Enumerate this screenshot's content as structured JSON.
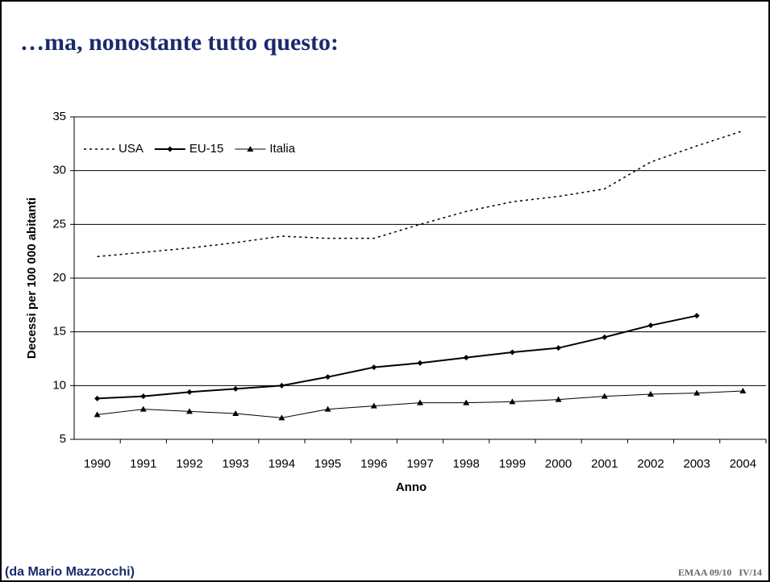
{
  "chart_data": {
    "type": "line",
    "title": "…ma, nonostante tutto questo:",
    "xlabel": "Anno",
    "ylabel": "Decessi per 100 000 abitanti",
    "categories": [
      "1990",
      "1991",
      "1992",
      "1993",
      "1994",
      "1995",
      "1996",
      "1997",
      "1998",
      "1999",
      "2000",
      "2001",
      "2002",
      "2003",
      "2004"
    ],
    "series": [
      {
        "name": "USA",
        "color": "#000000",
        "dash": true,
        "marker": "none",
        "values": [
          22.0,
          22.4,
          22.8,
          23.3,
          23.9,
          23.7,
          23.7,
          25.0,
          26.2,
          27.1,
          27.6,
          28.3,
          30.8,
          32.3,
          33.7
        ]
      },
      {
        "name": "EU-15",
        "color": "#000000",
        "dash": false,
        "marker": "diamond",
        "values": [
          8.8,
          9.0,
          9.4,
          9.7,
          10.0,
          10.8,
          11.7,
          12.1,
          12.6,
          13.1,
          13.5,
          14.5,
          15.6,
          16.5,
          null
        ]
      },
      {
        "name": "Italia",
        "color": "#000000",
        "dash": false,
        "marker": "triangle",
        "values": [
          7.3,
          7.8,
          7.6,
          7.4,
          7.0,
          7.8,
          8.1,
          8.4,
          8.4,
          8.5,
          8.7,
          9.0,
          9.2,
          9.3,
          9.5
        ]
      }
    ],
    "ylim": [
      5,
      35
    ],
    "yticks": [
      5,
      10,
      15,
      20,
      25,
      30,
      35
    ],
    "grid": true,
    "legend": "top-left"
  },
  "footer": {
    "source": "(da Mario Mazzocchi)",
    "code": "EMAA 09/10   IV/14"
  }
}
